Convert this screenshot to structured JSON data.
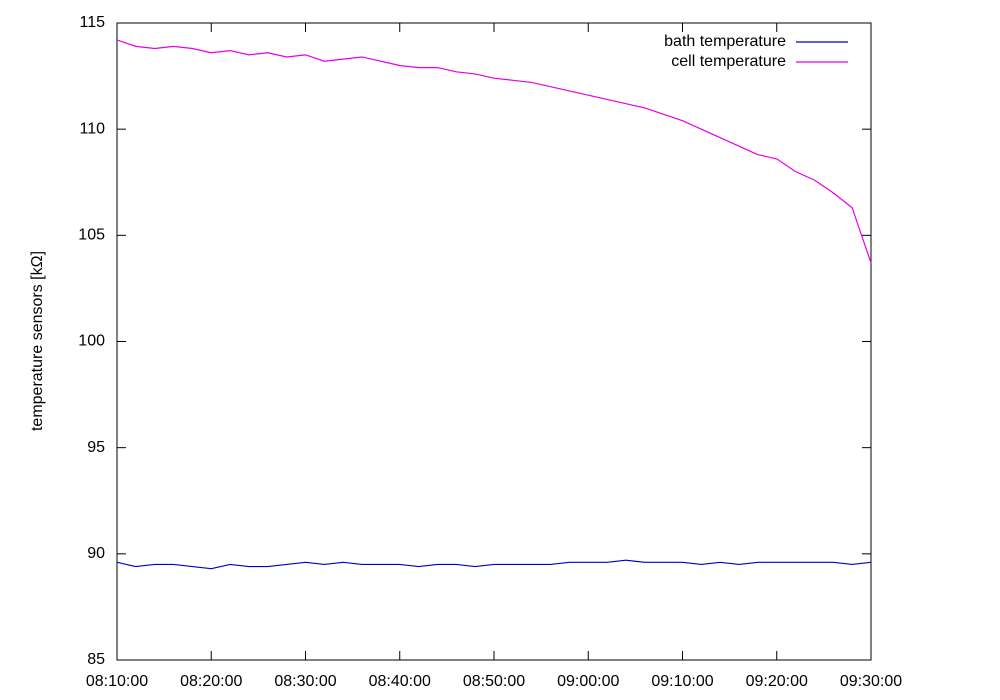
{
  "chart_data": {
    "type": "line",
    "y_label": "temperature sensors [kΩ]",
    "x": [
      "08:10:00",
      "08:12:00",
      "08:14:00",
      "08:16:00",
      "08:18:00",
      "08:20:00",
      "08:22:00",
      "08:24:00",
      "08:26:00",
      "08:28:00",
      "08:30:00",
      "08:32:00",
      "08:34:00",
      "08:36:00",
      "08:38:00",
      "08:40:00",
      "08:42:00",
      "08:44:00",
      "08:46:00",
      "08:48:00",
      "08:50:00",
      "08:52:00",
      "08:54:00",
      "08:56:00",
      "08:58:00",
      "09:00:00",
      "09:02:00",
      "09:04:00",
      "09:06:00",
      "09:08:00",
      "09:10:00",
      "09:12:00",
      "09:14:00",
      "09:16:00",
      "09:18:00",
      "09:20:00",
      "09:22:00",
      "09:24:00",
      "09:26:00",
      "09:28:00",
      "09:30:00"
    ],
    "series": [
      {
        "name": "bath temperature",
        "color": "#0000cc",
        "values": [
          89.6,
          89.4,
          89.5,
          89.5,
          89.4,
          89.3,
          89.5,
          89.4,
          89.4,
          89.5,
          89.6,
          89.5,
          89.6,
          89.5,
          89.5,
          89.5,
          89.4,
          89.5,
          89.5,
          89.4,
          89.5,
          89.5,
          89.5,
          89.5,
          89.6,
          89.6,
          89.6,
          89.7,
          89.6,
          89.6,
          89.6,
          89.5,
          89.6,
          89.5,
          89.6,
          89.6,
          89.6,
          89.6,
          89.6,
          89.5,
          89.6
        ]
      },
      {
        "name": "cell temperature",
        "color": "#e600e6",
        "values": [
          114.2,
          113.9,
          113.8,
          113.9,
          113.8,
          113.6,
          113.7,
          113.5,
          113.6,
          113.4,
          113.5,
          113.2,
          113.3,
          113.4,
          113.2,
          113.0,
          112.9,
          112.9,
          112.7,
          112.6,
          112.4,
          112.3,
          112.2,
          112.0,
          111.8,
          111.6,
          111.4,
          111.2,
          111.0,
          110.7,
          110.4,
          110.0,
          109.6,
          109.2,
          108.8,
          108.6,
          108.0,
          107.6,
          107.0,
          106.3,
          103.7
        ]
      }
    ],
    "xlim": [
      "08:10:00",
      "09:30:00"
    ],
    "xticks": [
      "08:10:00",
      "08:20:00",
      "08:30:00",
      "08:40:00",
      "08:50:00",
      "09:00:00",
      "09:10:00",
      "09:20:00",
      "09:30:00"
    ],
    "ylim": [
      85,
      115
    ],
    "yticks": [
      85,
      90,
      95,
      100,
      105,
      110,
      115
    ],
    "legend": "top-right"
  }
}
